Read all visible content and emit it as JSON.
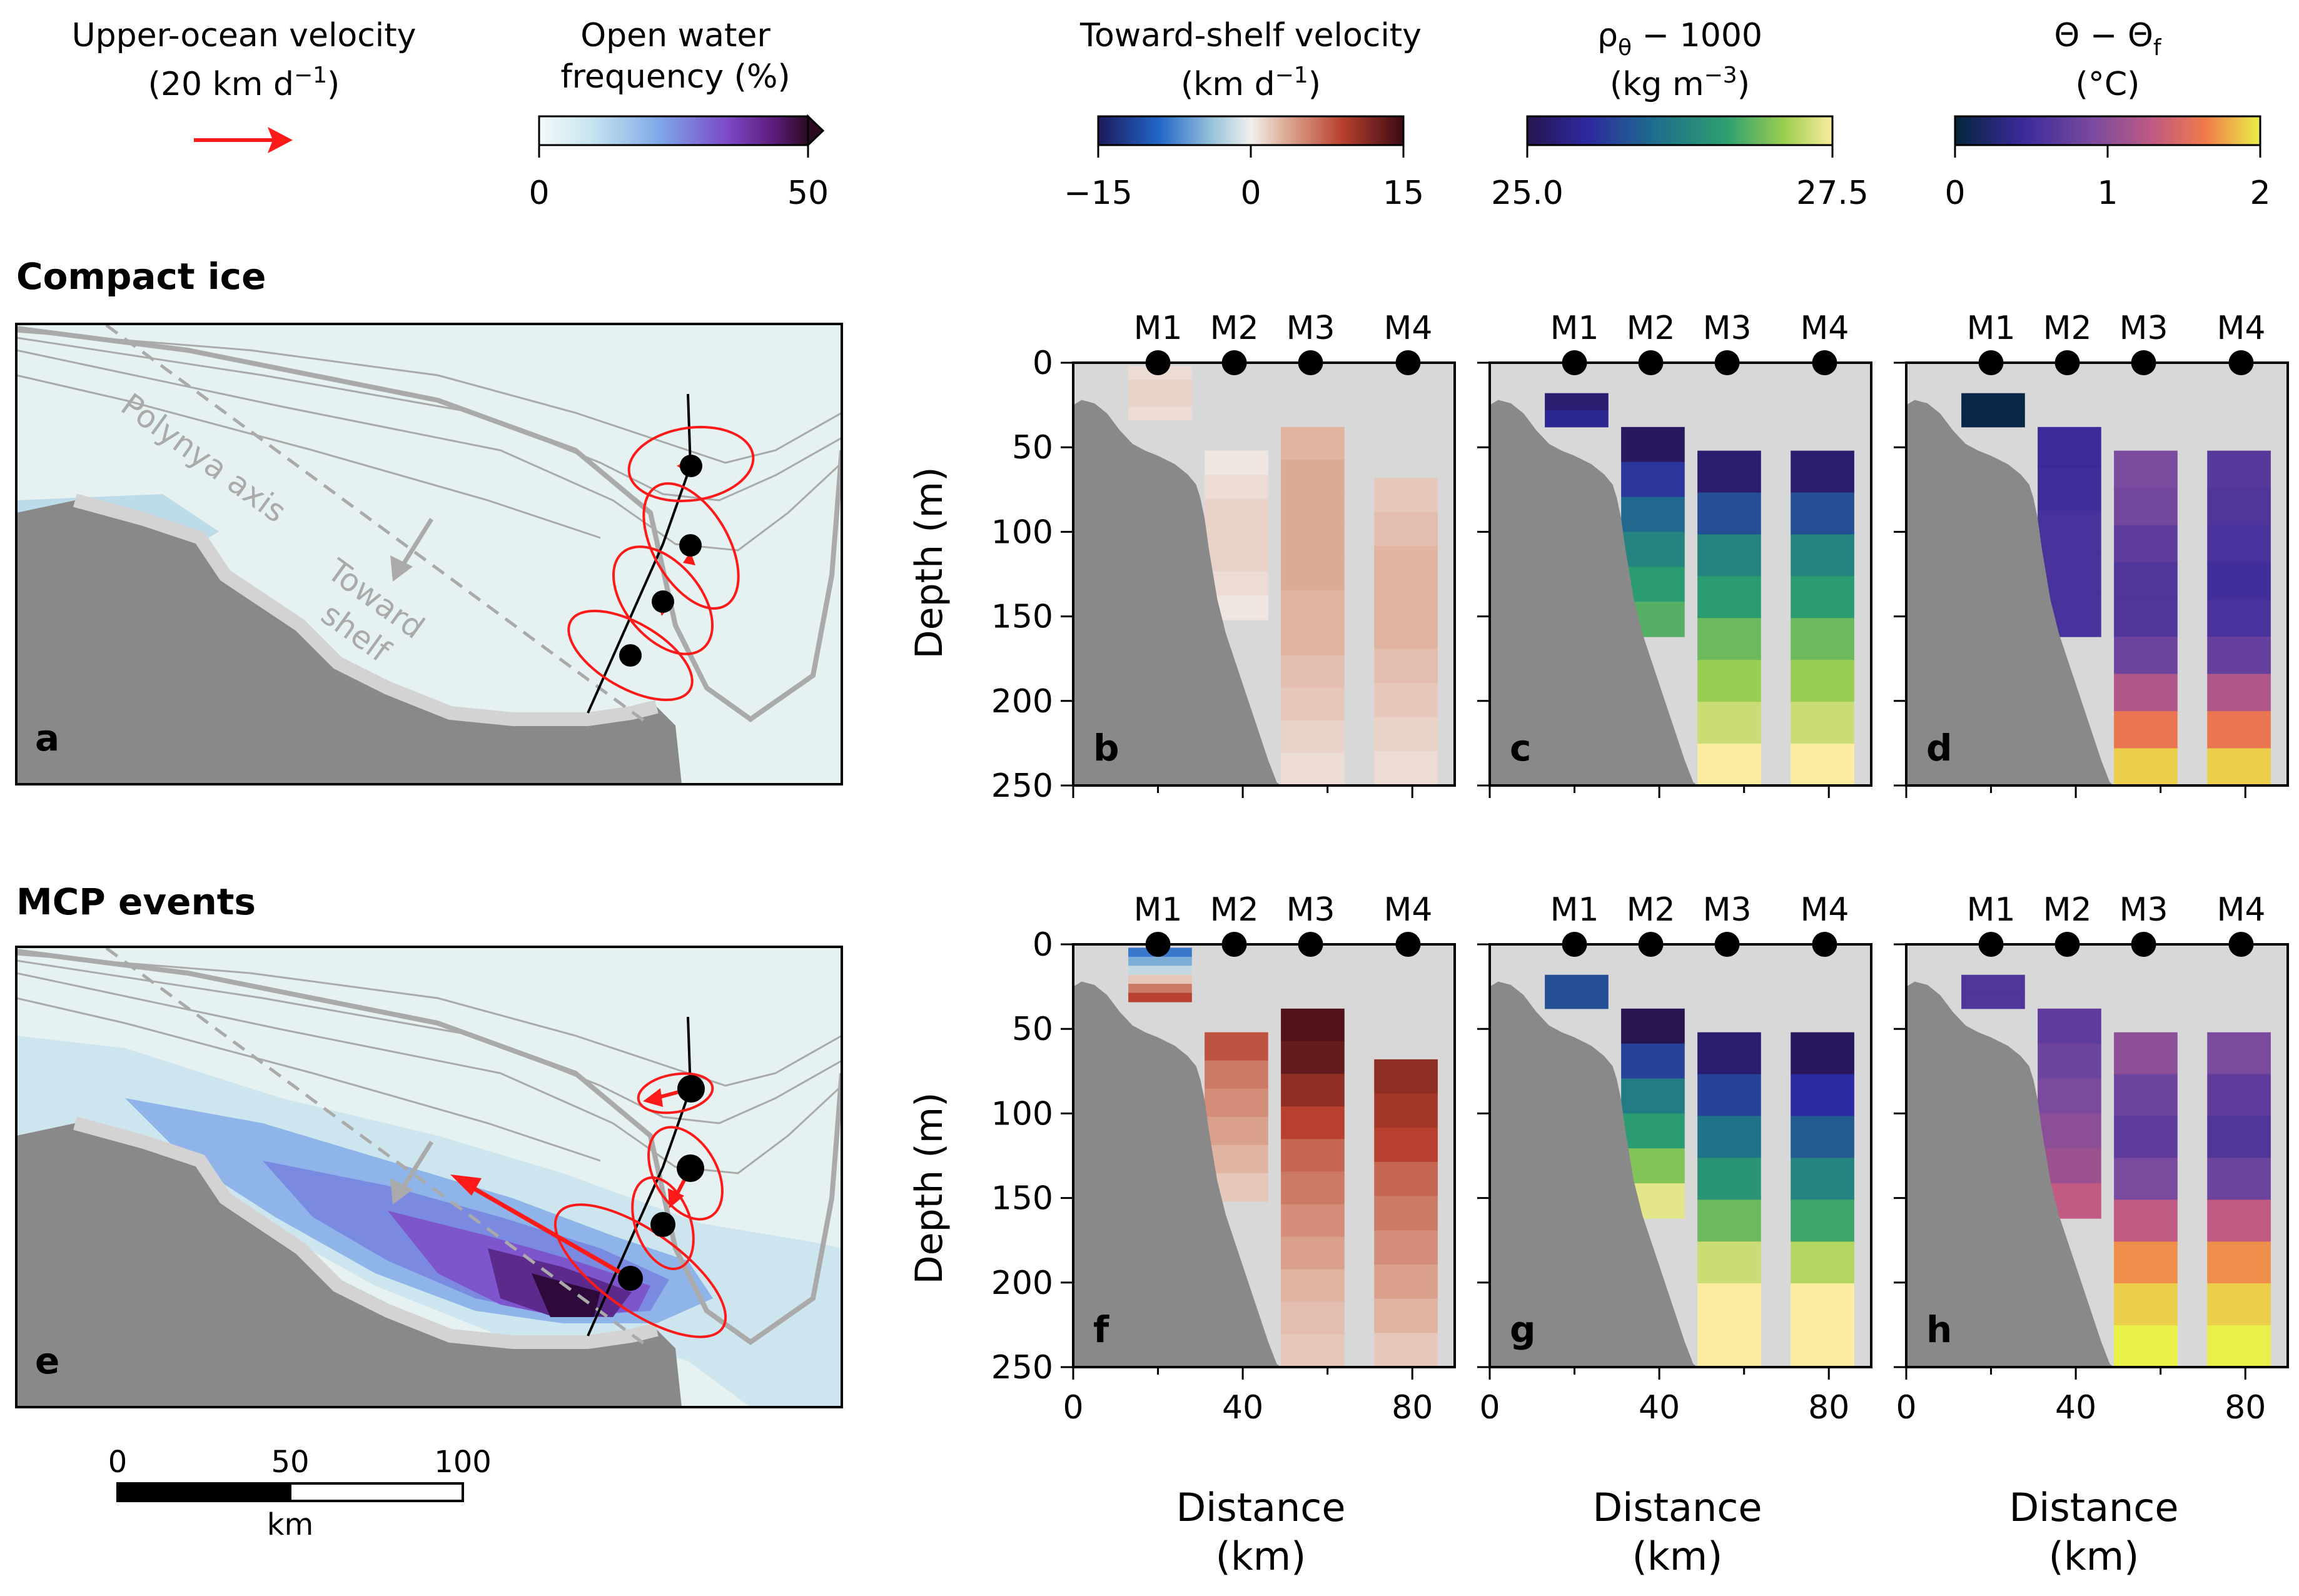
{
  "legends": {
    "arrow": {
      "title1": "Upper-ocean velocity",
      "title2": "(20 km d",
      "sup": "−1",
      "title2_end": ")",
      "color": "#ff1a1a"
    },
    "open_water": {
      "title1": "Open water",
      "title2": "frequency (%)",
      "ticks": [
        "0",
        "50"
      ],
      "range": [
        0,
        50
      ]
    },
    "velocity": {
      "title1": "Toward-shelf velocity",
      "title2": "(km d",
      "sup": "−1",
      "title2_end": ")",
      "ticks": [
        "−15",
        "0",
        "15"
      ],
      "range": [
        -15,
        15
      ]
    },
    "density": {
      "title1": "ρ",
      "sub": "θ",
      "title1_end": " − 1000",
      "title2": "(kg m",
      "sup": "−3",
      "title2_end": ")",
      "ticks": [
        "25.0",
        "27.5"
      ],
      "range": [
        25.0,
        27.5
      ]
    },
    "temp": {
      "title1": "Θ − Θ",
      "sub": "f",
      "title2": "(°C)",
      "ticks": [
        "0",
        "1",
        "2"
      ],
      "range": [
        0,
        2
      ]
    }
  },
  "rows": [
    {
      "title": "Compact ice",
      "map_letter": "a",
      "section_letters": [
        "b",
        "c",
        "d"
      ]
    },
    {
      "title": "MCP events",
      "map_letter": "e",
      "section_letters": [
        "f",
        "g",
        "h"
      ]
    }
  ],
  "map_labels": {
    "axis": "Polynya axis",
    "toward1": "Toward",
    "toward2": "shelf"
  },
  "scalebar": {
    "ticks": [
      "0",
      "50",
      "100"
    ],
    "unit": "km"
  },
  "axes": {
    "ylabel": "Depth (m)",
    "xlabel1": "Distance",
    "xlabel2": "(km)",
    "yticks": [
      0,
      50,
      100,
      150,
      200,
      250
    ],
    "xticks_bottom": [
      "0",
      "40",
      "80"
    ],
    "xlim": [
      0,
      90
    ],
    "ylim": [
      250,
      0
    ]
  },
  "moorings": [
    {
      "name": "M1",
      "x": 20
    },
    {
      "name": "M2",
      "x": 38
    },
    {
      "name": "M3",
      "x": 56
    },
    {
      "name": "M4",
      "x": 79
    }
  ],
  "chart_data": [
    {
      "type": "heatmap",
      "panel": "b",
      "variable": "Toward-shelf velocity (km d−1)",
      "profiles": [
        {
          "mooring": "M1",
          "x_range": [
            13,
            28
          ],
          "depth_range": [
            2,
            34
          ],
          "values": [
            1,
            1.5,
            1.5,
            1
          ]
        },
        {
          "mooring": "M2",
          "x_range": [
            31,
            46
          ],
          "depth_range": [
            52,
            152
          ],
          "values": [
            0.5,
            1,
            1.5,
            1.5,
            1.5,
            1,
            0.5
          ]
        },
        {
          "mooring": "M3",
          "x_range": [
            49,
            64
          ],
          "depth_range": [
            38,
            250
          ],
          "values": [
            3,
            3.5,
            3.5,
            3.5,
            3.5,
            3,
            3,
            2.5,
            2,
            1.5,
            1
          ]
        },
        {
          "mooring": "M4",
          "x_range": [
            71,
            86
          ],
          "depth_range": [
            68,
            250
          ],
          "values": [
            2,
            2.5,
            3,
            3,
            3,
            2.5,
            2,
            1.5,
            1
          ]
        }
      ]
    },
    {
      "type": "heatmap",
      "panel": "c",
      "variable": "ρθ − 1000 (kg m−3)",
      "profiles": [
        {
          "mooring": "M1",
          "x_range": [
            13,
            28
          ],
          "depth_range": [
            18,
            38
          ],
          "values": [
            25.2,
            25.4
          ]
        },
        {
          "mooring": "M2",
          "x_range": [
            31,
            46
          ],
          "depth_range": [
            38,
            162
          ],
          "values": [
            25.1,
            25.6,
            26.0,
            26.3,
            26.6,
            26.8
          ]
        },
        {
          "mooring": "M3",
          "x_range": [
            49,
            64
          ],
          "depth_range": [
            52,
            250
          ],
          "values": [
            25.2,
            25.8,
            26.3,
            26.6,
            26.9,
            27.1,
            27.3,
            27.5
          ]
        },
        {
          "mooring": "M4",
          "x_range": [
            71,
            86
          ],
          "depth_range": [
            52,
            250
          ],
          "values": [
            25.2,
            25.8,
            26.3,
            26.6,
            26.9,
            27.1,
            27.3,
            27.5
          ]
        }
      ]
    },
    {
      "type": "heatmap",
      "panel": "d",
      "variable": "Θ − Θf (°C)",
      "profiles": [
        {
          "mooring": "M1",
          "x_range": [
            13,
            28
          ],
          "depth_range": [
            18,
            38
          ],
          "values": [
            0.05,
            0.05
          ]
        },
        {
          "mooring": "M2",
          "x_range": [
            31,
            46
          ],
          "depth_range": [
            38,
            162
          ],
          "values": [
            0.45,
            0.5,
            0.55,
            0.55,
            0.55
          ]
        },
        {
          "mooring": "M3",
          "x_range": [
            49,
            64
          ],
          "depth_range": [
            52,
            250
          ],
          "values": [
            0.9,
            0.85,
            0.7,
            0.6,
            0.6,
            0.8,
            1.2,
            1.6,
            1.9
          ]
        },
        {
          "mooring": "M4",
          "x_range": [
            71,
            86
          ],
          "depth_range": [
            52,
            250
          ],
          "values": [
            0.65,
            0.6,
            0.55,
            0.5,
            0.55,
            0.75,
            1.2,
            1.6,
            1.9
          ]
        }
      ]
    },
    {
      "type": "heatmap",
      "panel": "f",
      "variable": "Toward-shelf velocity (km d−1)",
      "profiles": [
        {
          "mooring": "M1",
          "x_range": [
            13,
            28
          ],
          "depth_range": [
            2,
            34
          ],
          "values": [
            -8,
            -5,
            -2,
            2,
            6,
            9
          ]
        },
        {
          "mooring": "M2",
          "x_range": [
            31,
            46
          ],
          "depth_range": [
            52,
            152
          ],
          "values": [
            8,
            6,
            5,
            4,
            3,
            2
          ]
        },
        {
          "mooring": "M3",
          "x_range": [
            49,
            64
          ],
          "depth_range": [
            38,
            250
          ],
          "values": [
            14,
            13,
            11,
            9,
            7,
            6,
            5,
            4,
            3,
            2.5,
            2
          ]
        },
        {
          "mooring": "M4",
          "x_range": [
            71,
            86
          ],
          "depth_range": [
            68,
            250
          ],
          "values": [
            11,
            10,
            9,
            7,
            6,
            5,
            4,
            3,
            2
          ]
        }
      ]
    },
    {
      "type": "heatmap",
      "panel": "g",
      "variable": "ρθ − 1000 (kg m−3)",
      "profiles": [
        {
          "mooring": "M1",
          "x_range": [
            13,
            28
          ],
          "depth_range": [
            18,
            38
          ],
          "values": [
            25.8,
            25.8
          ]
        },
        {
          "mooring": "M2",
          "x_range": [
            31,
            46
          ],
          "depth_range": [
            38,
            162
          ],
          "values": [
            25.0,
            25.7,
            26.2,
            26.6,
            27.0,
            27.4
          ]
        },
        {
          "mooring": "M3",
          "x_range": [
            49,
            64
          ],
          "depth_range": [
            52,
            250
          ],
          "values": [
            25.2,
            25.7,
            26.1,
            26.5,
            26.9,
            27.3,
            27.5,
            27.5
          ]
        },
        {
          "mooring": "M4",
          "x_range": [
            71,
            86
          ],
          "depth_range": [
            52,
            250
          ],
          "values": [
            25.1,
            25.5,
            25.9,
            26.3,
            26.7,
            27.2,
            27.5,
            27.5
          ]
        }
      ]
    },
    {
      "type": "heatmap",
      "panel": "h",
      "variable": "Θ − Θf (°C)",
      "profiles": [
        {
          "mooring": "M1",
          "x_range": [
            13,
            28
          ],
          "depth_range": [
            18,
            38
          ],
          "values": [
            0.6,
            0.6
          ]
        },
        {
          "mooring": "M2",
          "x_range": [
            31,
            46
          ],
          "depth_range": [
            38,
            162
          ],
          "values": [
            0.7,
            0.8,
            0.9,
            1.0,
            1.1,
            1.3
          ]
        },
        {
          "mooring": "M3",
          "x_range": [
            49,
            64
          ],
          "depth_range": [
            52,
            250
          ],
          "values": [
            1.0,
            0.8,
            0.7,
            0.9,
            1.3,
            1.7,
            1.9,
            2.0
          ]
        },
        {
          "mooring": "M4",
          "x_range": [
            71,
            86
          ],
          "depth_range": [
            52,
            250
          ],
          "values": [
            0.9,
            0.7,
            0.6,
            0.8,
            1.3,
            1.7,
            1.9,
            2.0
          ]
        }
      ]
    }
  ]
}
